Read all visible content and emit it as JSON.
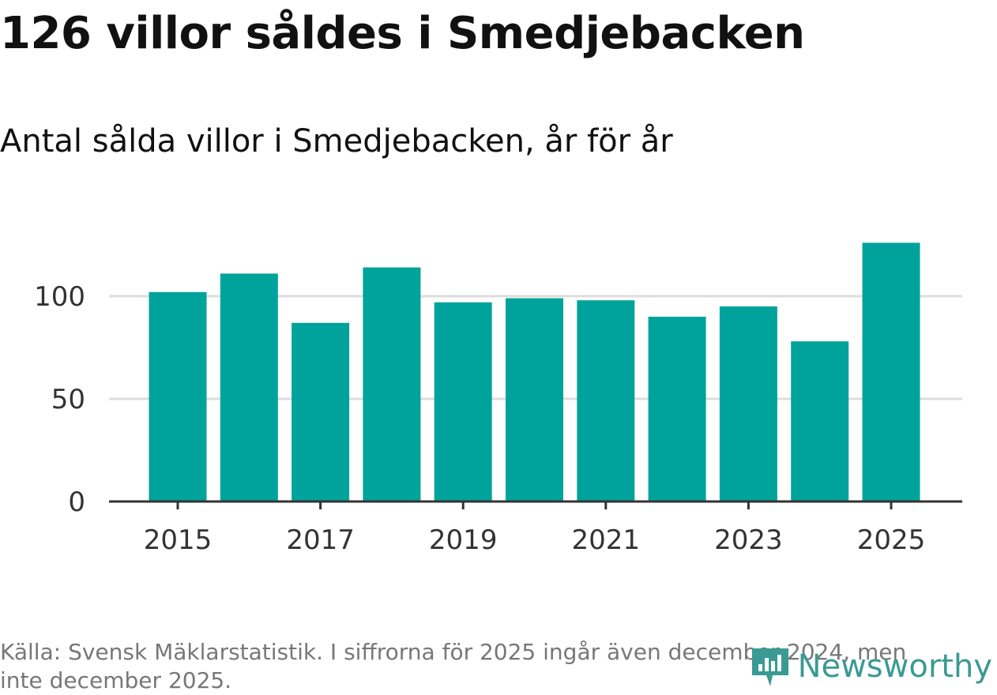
{
  "title": "126 villor såldes i Smedjebacken",
  "subtitle": "Antal sålda villor i Smedjebacken, år för år",
  "footnote": "Källa: Svensk Mäklarstatistik. I siffrorna för 2025 ingår även december 2024, men inte december 2025.",
  "logo": {
    "text": "Newsworthy",
    "color": "#3a9a94"
  },
  "colors": {
    "bar": "#00a39b",
    "grid": "#dddddd",
    "axis": "#333333",
    "tick_text": "#333333"
  },
  "chart_data": {
    "type": "bar",
    "title": "126 villor såldes i Smedjebacken",
    "subtitle": "Antal sålda villor i Smedjebacken, år för år",
    "xlabel": "",
    "ylabel": "",
    "categories": [
      2015,
      2016,
      2017,
      2018,
      2019,
      2020,
      2021,
      2022,
      2023,
      2024,
      2025
    ],
    "values": [
      102,
      111,
      87,
      114,
      97,
      99,
      98,
      90,
      95,
      78,
      126
    ],
    "x_ticks": [
      2015,
      2017,
      2019,
      2021,
      2023,
      2025
    ],
    "y_ticks": [
      0,
      50,
      100
    ],
    "ylim": [
      0,
      130
    ],
    "grid": true
  }
}
